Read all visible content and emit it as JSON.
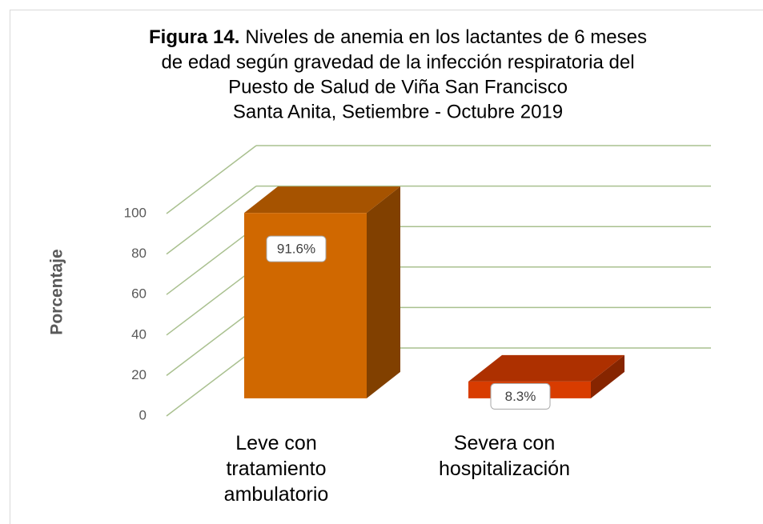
{
  "chart_data": {
    "type": "bar3d",
    "figure_label": "Figura 14.",
    "title_lines": [
      "Niveles de anemia en los lactantes de 6 meses",
      "de edad según gravedad de la infección respiratoria del",
      "Puesto de Salud de Viña San Francisco",
      "Santa Anita, Setiembre - Octubre 2019"
    ],
    "y_label": "Porcentaje",
    "categories": [
      "Leve con tratamiento ambulatorio",
      "Severa con hospitalización"
    ],
    "values": [
      91.6,
      8.3
    ],
    "value_labels": [
      "91.6%",
      "8.3%"
    ],
    "colors": [
      "#d06800",
      "#d83c00"
    ],
    "ylim": [
      0,
      100
    ],
    "yticks": [
      0,
      20,
      40,
      60,
      80,
      100
    ],
    "grid": true,
    "grid_color": "#a9c08f"
  }
}
